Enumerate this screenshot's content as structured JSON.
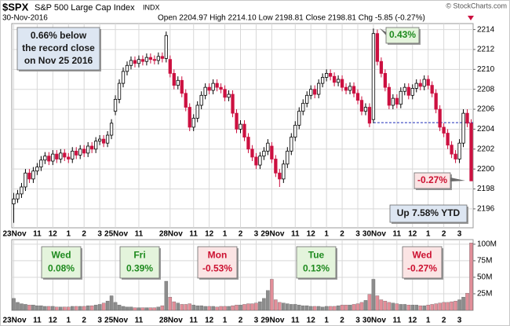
{
  "chart_data": {
    "type": "candlestick",
    "symbol": "$SPX",
    "name": "S&P 500 Large Cap Index",
    "exchange": "INDX",
    "date": "30-Nov-2016",
    "quote": "Open 2204.97 High 2214.10 Low 2198.81 Close 2198.81 Chg -5.85 (-0.27%)",
    "credit": "© StockCharts.com",
    "up_color": "#000000",
    "down_color": "#cc1040",
    "volume_up_color": "#8c8c8c",
    "volume_down_color": "#e28e99",
    "grid": true,
    "ylim": [
      2194.1,
      2214.6
    ],
    "yticks": [
      2196,
      2198,
      2200,
      2202,
      2204,
      2206,
      2208,
      2210,
      2212,
      2214
    ],
    "volume_ylim": [
      0,
      107
    ],
    "volume_ticks": [
      {
        "value": 25,
        "label": "25M"
      },
      {
        "value": 50,
        "label": "50M"
      },
      {
        "value": 75,
        "label": "75M"
      },
      {
        "value": 100,
        "label": "100M"
      }
    ],
    "reference_line": {
      "value": 2204.66,
      "start": 92
    },
    "categories": [
      "23Nov",
      null,
      null,
      null,
      null,
      null,
      "11",
      null,
      null,
      null,
      "12",
      null,
      null,
      null,
      "1",
      null,
      null,
      null,
      "2",
      null,
      null,
      null,
      "3",
      null,
      null,
      null,
      "25Nov",
      null,
      null,
      null,
      null,
      null,
      "11",
      null,
      null,
      null,
      null,
      null,
      null,
      null,
      "28Nov",
      null,
      null,
      null,
      null,
      null,
      "11",
      null,
      null,
      null,
      "12",
      null,
      null,
      null,
      "1",
      null,
      null,
      null,
      "2",
      null,
      null,
      null,
      "3",
      null,
      null,
      null,
      "29Nov",
      null,
      null,
      null,
      null,
      null,
      "11",
      null,
      null,
      null,
      "12",
      null,
      null,
      null,
      "1",
      null,
      null,
      null,
      "2",
      null,
      null,
      null,
      "3",
      null,
      null,
      null,
      "30Nov",
      null,
      null,
      null,
      null,
      null,
      "11",
      null,
      null,
      null,
      "12",
      null,
      null,
      null,
      "1",
      null,
      null,
      null,
      "2",
      null,
      null,
      null,
      "3",
      null,
      null,
      null
    ],
    "ohlc": [
      [
        2196.5,
        2197.6,
        2194.6,
        2197.0
      ],
      [
        2197.0,
        2197.9,
        2196.6,
        2197.5
      ],
      [
        2197.5,
        2198.6,
        2197.1,
        2198.2
      ],
      [
        2198.2,
        2200.0,
        2197.8,
        2199.6
      ],
      [
        2199.6,
        2200.0,
        2198.6,
        2199.0
      ],
      [
        2199.0,
        2200.2,
        2198.6,
        2199.8
      ],
      [
        2199.8,
        2200.6,
        2199.4,
        2200.2
      ],
      [
        2200.2,
        2201.3,
        2199.8,
        2200.9
      ],
      [
        2200.9,
        2201.7,
        2200.5,
        2201.3
      ],
      [
        2201.3,
        2201.7,
        2200.4,
        2200.8
      ],
      [
        2200.8,
        2201.9,
        2200.4,
        2201.5
      ],
      [
        2201.5,
        2201.9,
        2200.6,
        2201.0
      ],
      [
        2201.0,
        2202.0,
        2200.6,
        2201.6
      ],
      [
        2201.6,
        2202.0,
        2200.8,
        2201.2
      ],
      [
        2201.2,
        2201.6,
        2200.6,
        2201.0
      ],
      [
        2201.0,
        2202.2,
        2200.6,
        2201.8
      ],
      [
        2201.8,
        2202.2,
        2201.0,
        2201.4
      ],
      [
        2201.4,
        2202.4,
        2201.0,
        2202.0
      ],
      [
        2202.0,
        2202.4,
        2201.2,
        2201.6
      ],
      [
        2201.6,
        2202.7,
        2201.2,
        2202.3
      ],
      [
        2202.3,
        2202.7,
        2201.6,
        2202.0
      ],
      [
        2202.0,
        2203.2,
        2201.6,
        2202.8
      ],
      [
        2202.8,
        2203.4,
        2202.4,
        2203.0
      ],
      [
        2203.0,
        2203.4,
        2202.2,
        2202.6
      ],
      [
        2202.6,
        2203.8,
        2202.2,
        2203.4
      ],
      [
        2203.4,
        2205.0,
        2203.0,
        2204.6
      ],
      [
        2205.8,
        2207.4,
        2205.4,
        2207.0
      ],
      [
        2207.0,
        2209.0,
        2206.6,
        2208.6
      ],
      [
        2208.6,
        2210.2,
        2208.2,
        2209.8
      ],
      [
        2209.8,
        2210.8,
        2209.4,
        2210.4
      ],
      [
        2210.4,
        2211.3,
        2210.0,
        2210.9
      ],
      [
        2210.9,
        2211.3,
        2210.2,
        2210.6
      ],
      [
        2210.6,
        2211.4,
        2210.2,
        2211.0
      ],
      [
        2211.0,
        2211.4,
        2210.4,
        2210.8
      ],
      [
        2210.8,
        2211.6,
        2210.4,
        2211.2
      ],
      [
        2211.2,
        2211.6,
        2210.6,
        2211.0
      ],
      [
        2211.0,
        2211.4,
        2210.5,
        2210.9
      ],
      [
        2210.9,
        2211.7,
        2210.5,
        2211.3
      ],
      [
        2211.3,
        2211.7,
        2210.7,
        2211.1
      ],
      [
        2211.1,
        2213.8,
        2210.7,
        2213.4
      ],
      [
        2211.0,
        2211.4,
        2209.2,
        2209.6
      ],
      [
        2209.6,
        2210.0,
        2208.0,
        2208.4
      ],
      [
        2208.4,
        2209.3,
        2208.0,
        2208.9
      ],
      [
        2208.9,
        2209.3,
        2207.2,
        2207.6
      ],
      [
        2207.6,
        2208.0,
        2205.8,
        2206.2
      ],
      [
        2206.2,
        2206.6,
        2203.8,
        2204.2
      ],
      [
        2204.2,
        2205.5,
        2203.8,
        2205.1
      ],
      [
        2205.1,
        2206.8,
        2204.7,
        2206.4
      ],
      [
        2206.4,
        2207.8,
        2206.0,
        2207.4
      ],
      [
        2207.4,
        2208.6,
        2207.0,
        2208.2
      ],
      [
        2208.2,
        2208.6,
        2207.5,
        2207.9
      ],
      [
        2207.9,
        2209.0,
        2207.5,
        2208.6
      ],
      [
        2208.6,
        2209.0,
        2207.8,
        2208.2
      ],
      [
        2208.2,
        2208.6,
        2207.6,
        2208.0
      ],
      [
        2208.0,
        2208.4,
        2206.8,
        2207.2
      ],
      [
        2207.2,
        2207.9,
        2206.8,
        2207.5
      ],
      [
        2207.5,
        2207.9,
        2205.2,
        2205.6
      ],
      [
        2205.6,
        2206.0,
        2203.6,
        2204.0
      ],
      [
        2204.0,
        2204.9,
        2203.6,
        2204.5
      ],
      [
        2204.5,
        2204.9,
        2202.8,
        2203.2
      ],
      [
        2203.2,
        2203.6,
        2201.6,
        2202.0
      ],
      [
        2202.0,
        2202.4,
        2200.8,
        2201.2
      ],
      [
        2201.2,
        2201.6,
        2200.0,
        2200.4
      ],
      [
        2200.4,
        2201.7,
        2200.0,
        2201.3
      ],
      [
        2201.3,
        2202.2,
        2200.9,
        2201.8
      ],
      [
        2201.8,
        2203.0,
        2201.4,
        2202.6
      ],
      [
        2202.3,
        2202.7,
        2200.6,
        2201.0
      ],
      [
        2201.0,
        2201.4,
        2199.2,
        2199.6
      ],
      [
        2199.6,
        2200.0,
        2198.2,
        2199.0
      ],
      [
        2199.0,
        2200.9,
        2198.6,
        2200.5
      ],
      [
        2200.5,
        2202.2,
        2200.1,
        2201.8
      ],
      [
        2201.8,
        2203.6,
        2201.4,
        2203.2
      ],
      [
        2203.2,
        2204.8,
        2202.8,
        2204.4
      ],
      [
        2204.4,
        2206.2,
        2204.0,
        2205.8
      ],
      [
        2205.8,
        2207.0,
        2205.4,
        2206.6
      ],
      [
        2206.6,
        2207.8,
        2206.2,
        2207.4
      ],
      [
        2207.4,
        2208.4,
        2207.0,
        2208.0
      ],
      [
        2208.0,
        2208.4,
        2207.1,
        2207.5
      ],
      [
        2207.5,
        2209.0,
        2207.1,
        2208.6
      ],
      [
        2208.6,
        2209.6,
        2208.2,
        2209.2
      ],
      [
        2209.2,
        2210.0,
        2208.8,
        2209.6
      ],
      [
        2209.6,
        2210.0,
        2208.9,
        2209.3
      ],
      [
        2209.3,
        2209.7,
        2208.3,
        2208.7
      ],
      [
        2208.7,
        2209.4,
        2208.3,
        2209.0
      ],
      [
        2209.0,
        2209.4,
        2207.8,
        2208.2
      ],
      [
        2208.2,
        2208.6,
        2207.5,
        2207.9
      ],
      [
        2207.9,
        2208.7,
        2207.5,
        2208.3
      ],
      [
        2208.3,
        2208.7,
        2207.2,
        2207.6
      ],
      [
        2207.6,
        2208.0,
        2206.5,
        2206.9
      ],
      [
        2206.9,
        2207.3,
        2205.4,
        2205.8
      ],
      [
        2205.8,
        2206.6,
        2205.4,
        2206.2
      ],
      [
        2206.2,
        2206.6,
        2204.2,
        2204.6
      ],
      [
        2204.97,
        2214.1,
        2204.6,
        2213.6
      ],
      [
        2213.6,
        2214.0,
        2210.4,
        2210.8
      ],
      [
        2210.8,
        2211.2,
        2209.2,
        2209.6
      ],
      [
        2209.6,
        2210.0,
        2207.8,
        2208.2
      ],
      [
        2208.2,
        2208.6,
        2206.0,
        2206.4
      ],
      [
        2206.4,
        2207.5,
        2206.0,
        2207.1
      ],
      [
        2207.1,
        2207.5,
        2206.1,
        2206.5
      ],
      [
        2206.5,
        2208.2,
        2206.1,
        2207.8
      ],
      [
        2207.8,
        2208.6,
        2207.4,
        2208.2
      ],
      [
        2208.2,
        2208.6,
        2207.0,
        2207.4
      ],
      [
        2207.4,
        2208.5,
        2207.0,
        2208.1
      ],
      [
        2208.1,
        2209.0,
        2207.7,
        2208.6
      ],
      [
        2208.6,
        2209.0,
        2207.9,
        2208.3
      ],
      [
        2208.3,
        2209.4,
        2207.9,
        2209.0
      ],
      [
        2209.0,
        2209.4,
        2208.0,
        2208.4
      ],
      [
        2208.4,
        2208.8,
        2207.2,
        2207.6
      ],
      [
        2207.6,
        2208.0,
        2205.6,
        2206.0
      ],
      [
        2206.0,
        2206.4,
        2203.8,
        2204.2
      ],
      [
        2204.2,
        2204.6,
        2203.2,
        2203.6
      ],
      [
        2203.6,
        2204.0,
        2202.0,
        2202.4
      ],
      [
        2202.4,
        2202.8,
        2201.1,
        2201.5
      ],
      [
        2201.5,
        2201.9,
        2200.6,
        2201.0
      ],
      [
        2201.0,
        2203.0,
        2200.6,
        2202.6
      ],
      [
        2202.6,
        2206.0,
        2202.2,
        2205.6
      ],
      [
        2205.6,
        2206.0,
        2204.2,
        2204.6
      ],
      [
        2204.6,
        2205.0,
        2198.81,
        2198.81
      ]
    ],
    "volume": [
      18,
      12,
      10,
      9,
      8,
      8,
      7,
      7,
      6,
      6,
      6,
      5,
      5,
      5,
      5,
      6,
      6,
      6,
      6,
      7,
      7,
      8,
      9,
      11,
      14,
      22,
      12,
      8,
      6,
      5,
      5,
      4,
      4,
      4,
      4,
      4,
      4,
      5,
      7,
      44,
      20,
      13,
      11,
      9,
      9,
      10,
      8,
      7,
      7,
      6,
      6,
      6,
      5,
      6,
      6,
      6,
      7,
      8,
      8,
      9,
      10,
      10,
      11,
      13,
      18,
      30,
      47,
      16,
      12,
      11,
      10,
      9,
      9,
      8,
      7,
      7,
      6,
      6,
      6,
      5,
      6,
      6,
      6,
      7,
      8,
      8,
      8,
      9,
      10,
      12,
      15,
      24,
      47,
      22,
      16,
      14,
      12,
      11,
      10,
      9,
      9,
      8,
      8,
      8,
      7,
      7,
      8,
      9,
      10,
      11,
      12,
      12,
      13,
      14,
      16,
      20,
      26,
      102
    ],
    "annotations": [
      {
        "lines": [
          "0.66% below",
          "the record close",
          "on Nov 25 2016"
        ],
        "color": "#1a1a1a",
        "background": "#dde6f2"
      },
      {
        "lines": [
          "0.43%"
        ],
        "color": "#1e8a1e",
        "background": "#e4f4dc"
      },
      {
        "lines": [
          "-0.27%"
        ],
        "color": "#cc1030",
        "background": "#fbe4e4"
      },
      {
        "lines": [
          "Up 7.58% YTD"
        ],
        "color": "#1a1a1a",
        "background": "#dde6f2"
      }
    ],
    "day_labels": [
      {
        "lines": [
          "Wed",
          "0.08%"
        ],
        "color": "#1e8a1e",
        "background": "#e4f4dc"
      },
      {
        "lines": [
          "Fri",
          "0.39%"
        ],
        "color": "#1e8a1e",
        "background": "#e4f4dc"
      },
      {
        "lines": [
          "Mon",
          "-0.53%"
        ],
        "color": "#cc1030",
        "background": "#fbe4e4"
      },
      {
        "lines": [
          "Tue",
          "0.13%"
        ],
        "color": "#1e8a1e",
        "background": "#e4f4dc"
      },
      {
        "lines": [
          "Wed",
          "-0.27%"
        ],
        "color": "#cc1030",
        "background": "#fbe4e4"
      }
    ]
  }
}
